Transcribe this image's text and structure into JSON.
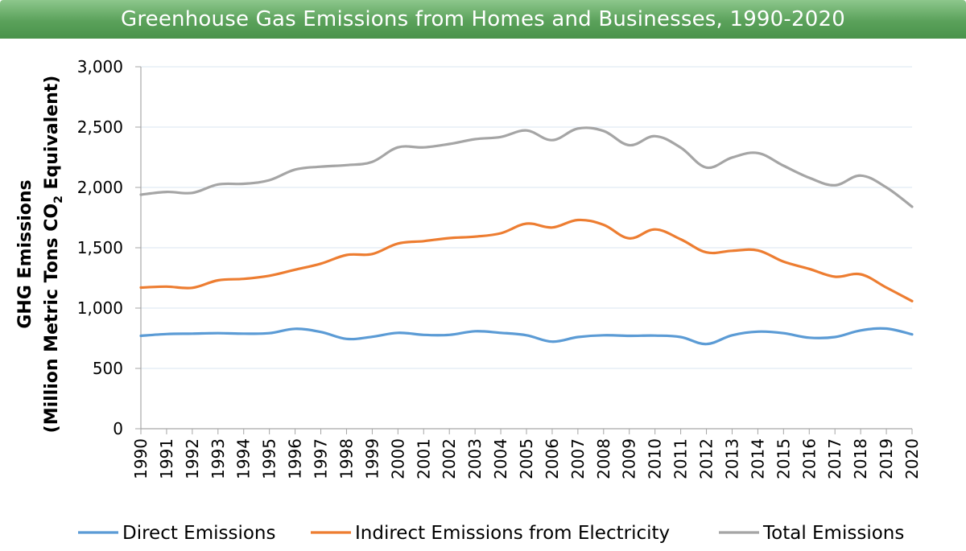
{
  "title": "Greenhouse Gas Emissions from Homes and Businesses, 1990-2020",
  "chart_data": {
    "type": "line",
    "title": "Greenhouse Gas Emissions from Homes and Businesses, 1990-2020",
    "xlabel": "",
    "ylabel_line1": "GHG Emissions",
    "ylabel_line2_prefix": "(Million Metric Tons CO",
    "ylabel_subscript": "2",
    "ylabel_line2_suffix": " Equivalent)",
    "ylim": [
      0,
      3000
    ],
    "y_ticks": [
      0,
      500,
      1000,
      1500,
      2000,
      2500,
      3000
    ],
    "y_tick_labels": [
      "0",
      "500",
      "1,000",
      "1,500",
      "2,000",
      "2,500",
      "3,000"
    ],
    "grid": true,
    "legend_position": "bottom",
    "categories": [
      "1990",
      "1991",
      "1992",
      "1993",
      "1994",
      "1995",
      "1996",
      "1997",
      "1998",
      "1999",
      "2000",
      "2001",
      "2002",
      "2003",
      "2004",
      "2005",
      "2006",
      "2007",
      "2008",
      "2009",
      "2010",
      "2011",
      "2012",
      "2013",
      "2014",
      "2015",
      "2016",
      "2017",
      "2018",
      "2019",
      "2020"
    ],
    "series": [
      {
        "name": "Direct Emissions",
        "color": "#5b9bd5",
        "values": [
          770,
          785,
          788,
          792,
          788,
          792,
          828,
          802,
          745,
          762,
          795,
          778,
          778,
          808,
          795,
          775,
          722,
          760,
          775,
          770,
          772,
          760,
          702,
          775,
          805,
          792,
          755,
          760,
          815,
          830,
          782
        ]
      },
      {
        "name": "Indirect Emissions from Electricity",
        "color": "#ed7d31",
        "values": [
          1170,
          1178,
          1168,
          1230,
          1242,
          1268,
          1318,
          1368,
          1440,
          1448,
          1535,
          1555,
          1580,
          1592,
          1620,
          1700,
          1668,
          1730,
          1690,
          1578,
          1652,
          1570,
          1462,
          1475,
          1478,
          1385,
          1325,
          1260,
          1280,
          1170,
          1058
        ]
      },
      {
        "name": "Total Emissions",
        "color": "#a5a5a5",
        "values": [
          1940,
          1963,
          1955,
          2025,
          2030,
          2060,
          2148,
          2172,
          2185,
          2212,
          2332,
          2332,
          2360,
          2400,
          2418,
          2472,
          2392,
          2488,
          2468,
          2350,
          2425,
          2330,
          2165,
          2248,
          2285,
          2180,
          2080,
          2018,
          2098,
          2000,
          1840
        ]
      }
    ]
  }
}
